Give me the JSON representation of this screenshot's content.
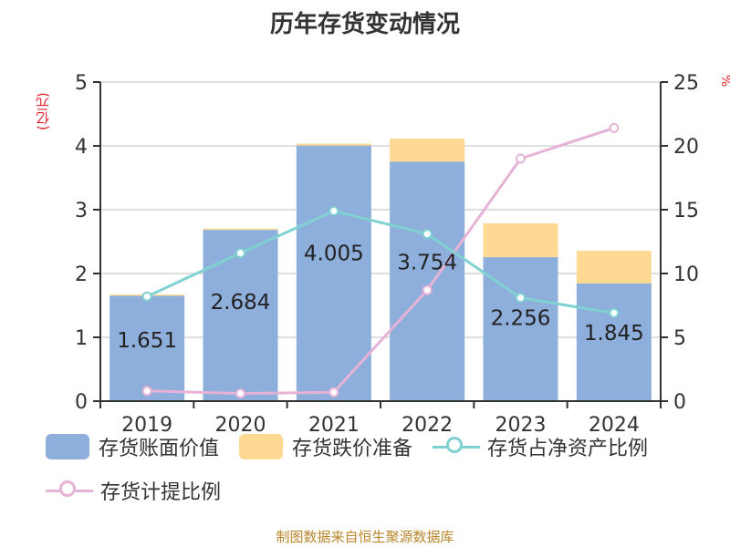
{
  "title": "历年存货变动情况",
  "left_unit": "(亿元)",
  "right_unit": "%",
  "footer": "制图数据来自恒生聚源数据库",
  "colors": {
    "book_value": "#8eaedb",
    "impairment": "#fdd994",
    "net_asset_ratio": "#7fd1d2",
    "provision_ratio": "#e6b3d6"
  },
  "legend": {
    "book_value": "存货账面价值",
    "impairment": "存货跌价准备",
    "net_asset_ratio": "存货占净资产比例",
    "provision_ratio": "存货计提比例"
  },
  "chart_data": {
    "type": "bar",
    "title": "历年存货变动情况",
    "categories": [
      "2019",
      "2020",
      "2021",
      "2022",
      "2023",
      "2024"
    ],
    "ylabel_left": "(亿元)",
    "ylabel_right": "%",
    "ylim_left": [
      0,
      5
    ],
    "ylim_right": [
      0,
      25
    ],
    "yticks_left": [
      "0",
      "1",
      "2",
      "3",
      "4",
      "5"
    ],
    "yticks_right": [
      "0",
      "5",
      "10",
      "15",
      "20",
      "25"
    ],
    "grid": true,
    "legend_position": "bottom",
    "series": [
      {
        "name": "存货账面价值",
        "kind": "bar",
        "axis": "left",
        "values": [
          1.651,
          2.684,
          4.005,
          3.754,
          2.256,
          1.845
        ],
        "labels": [
          "1.651",
          "2.684",
          "4.005",
          "3.754",
          "2.256",
          "1.845"
        ]
      },
      {
        "name": "存货跌价准备",
        "kind": "bar",
        "axis": "left",
        "values": [
          0.02,
          0.02,
          0.03,
          0.36,
          0.53,
          0.51
        ]
      },
      {
        "name": "存货占净资产比例",
        "kind": "line",
        "axis": "right",
        "values": [
          8.2,
          11.6,
          14.9,
          13.1,
          8.1,
          6.9
        ]
      },
      {
        "name": "存货计提比例",
        "kind": "line",
        "axis": "right",
        "values": [
          0.8,
          0.6,
          0.7,
          8.7,
          19.0,
          21.4
        ]
      }
    ]
  }
}
